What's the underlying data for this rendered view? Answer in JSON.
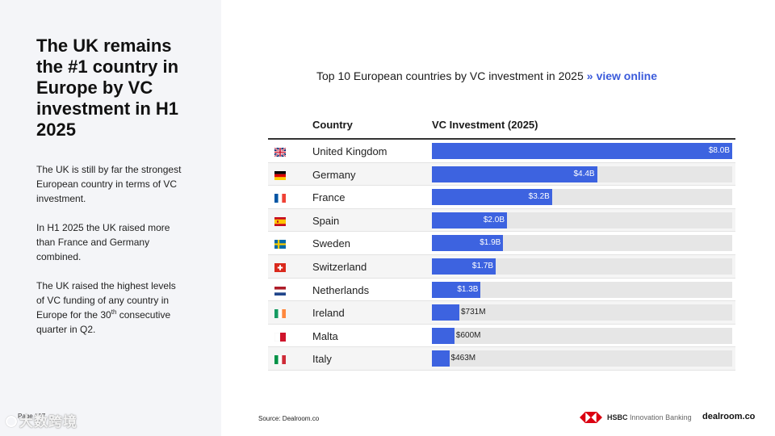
{
  "sidebar": {
    "headline": "The UK remains the #1 country in Europe by VC investment in H1 2025",
    "paragraph_1": "The UK is still by far the strongest European country in terms of VC investment.",
    "paragraph_2": "In H1 2025 the UK raised more than France and Germany combined.",
    "paragraph_3_a": "The UK raised the highest levels of VC funding of any country in Europe for the 30",
    "paragraph_3_sup": "th",
    "paragraph_3_b": "consecutive quarter in Q2.",
    "page_number": "Page / 17",
    "watermark": "大数跨境"
  },
  "chart_header": {
    "title": "Top 10 European countries by VC investment in 2025",
    "separator": "»",
    "link": "view online"
  },
  "chart_data": {
    "type": "bar",
    "orientation": "horizontal",
    "column_headers": [
      "Country",
      "VC Investment (2025)"
    ],
    "max_value_musd": 8000,
    "rows": [
      {
        "country": "United Kingdom",
        "value_musd": 8000,
        "label": "$8.0B",
        "flag": "gb-flag-icon"
      },
      {
        "country": "Germany",
        "value_musd": 4400,
        "label": "$4.4B",
        "flag": "de-flag-icon"
      },
      {
        "country": "France",
        "value_musd": 3200,
        "label": "$3.2B",
        "flag": "fr-flag-icon"
      },
      {
        "country": "Spain",
        "value_musd": 2000,
        "label": "$2.0B",
        "flag": "es-flag-icon"
      },
      {
        "country": "Sweden",
        "value_musd": 1900,
        "label": "$1.9B",
        "flag": "se-flag-icon"
      },
      {
        "country": "Switzerland",
        "value_musd": 1700,
        "label": "$1.7B",
        "flag": "ch-flag-icon"
      },
      {
        "country": "Netherlands",
        "value_musd": 1300,
        "label": "$1.3B",
        "flag": "nl-flag-icon"
      },
      {
        "country": "Ireland",
        "value_musd": 731,
        "label": "$731M",
        "flag": "ie-flag-icon"
      },
      {
        "country": "Malta",
        "value_musd": 600,
        "label": "$600M",
        "flag": "mt-flag-icon"
      },
      {
        "country": "Italy",
        "value_musd": 463,
        "label": "$463M",
        "flag": "it-flag-icon"
      }
    ],
    "colors": {
      "bar": "#3d63e0",
      "track": "#e6e6e6"
    }
  },
  "footer": {
    "source": "Source:  Dealroom.co",
    "hsbc_brand": "HSBC",
    "hsbc_sub": "Innovation Banking",
    "dealroom": "dealroom.co"
  }
}
